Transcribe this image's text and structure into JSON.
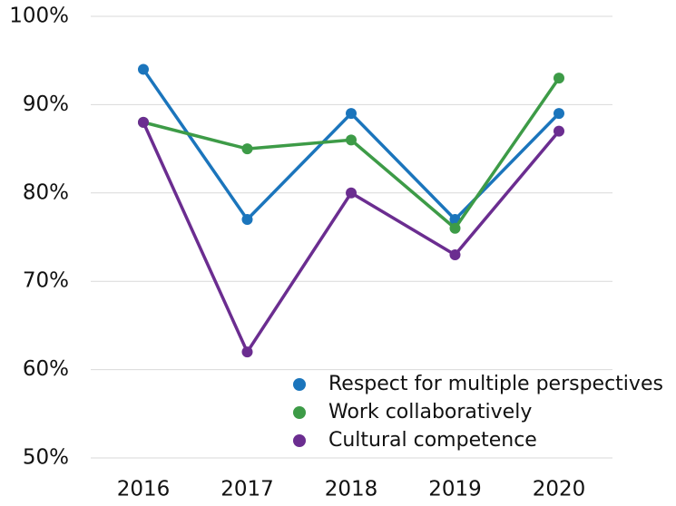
{
  "chart_data": {
    "type": "line",
    "categories": [
      "2016",
      "2017",
      "2018",
      "2019",
      "2020"
    ],
    "series": [
      {
        "name": "Respect for multiple perspectives",
        "color": "#1b75bc",
        "values": [
          94,
          77,
          89,
          77,
          89
        ]
      },
      {
        "name": "Work collaboratively",
        "color": "#3d9b47",
        "values": [
          88,
          85,
          86,
          76,
          93
        ]
      },
      {
        "name": "Cultural competence",
        "color": "#6b2d90",
        "values": [
          88,
          62,
          80,
          73,
          87
        ]
      }
    ],
    "ylim": [
      50,
      100
    ],
    "yticks": [
      {
        "value": 50,
        "label": "50%"
      },
      {
        "value": 60,
        "label": "60%"
      },
      {
        "value": 70,
        "label": "70%"
      },
      {
        "value": 80,
        "label": "80%"
      },
      {
        "value": 90,
        "label": "90%"
      },
      {
        "value": 100,
        "label": "100%"
      }
    ],
    "grid": true
  }
}
